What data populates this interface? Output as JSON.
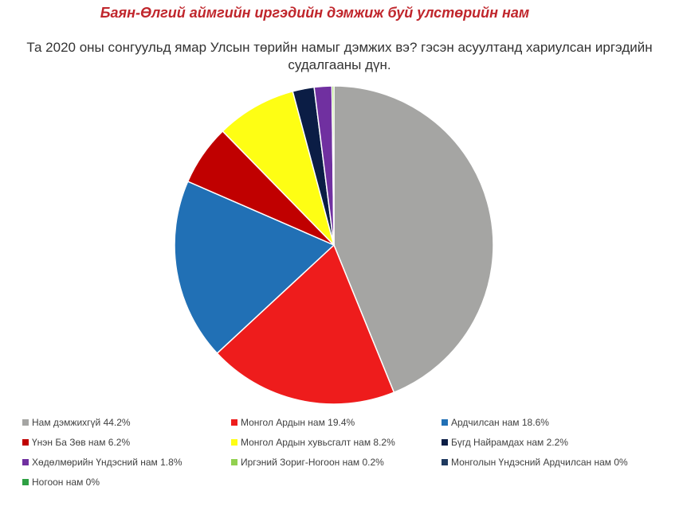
{
  "header": {
    "title": "Баян-Өлгий аймгийн иргэдийн дэмжиж буй улстөрийн нам",
    "subtitle_line1": "Та 2020 оны сонгуульд ямар Улсын төрийн намыг дэмжих вэ? гэсэн асуултанд хариулсан иргэдийн",
    "subtitle_line2": "судалгааны дүн."
  },
  "chart_data": {
    "type": "pie",
    "title": "Та 2020 оны сонгуульд ямар Улсын төрийн намыг дэмжих вэ? гэсэн асуултанд хариулсан иргэдийн судалгааны дүн.",
    "slices": [
      {
        "label": "Нам дэмжихгүй 44.2%",
        "value": 44.2,
        "color": "#a5a5a3"
      },
      {
        "label": "Монгол Ардын нам 19.4%",
        "value": 19.4,
        "color": "#ee1c1c"
      },
      {
        "label": "Ардчилсан нам 18.6%",
        "value": 18.6,
        "color": "#2170b5"
      },
      {
        "label": "Үнэн Ба Зөв нам 6.2%",
        "value": 6.2,
        "color": "#c00000"
      },
      {
        "label": "Монгол Ардын хувьсгалт нам 8.2%",
        "value": 8.2,
        "color": "#fefe14"
      },
      {
        "label": "Бүгд Найрамдах нам 2.2%",
        "value": 2.2,
        "color": "#0b1d45"
      },
      {
        "label": "Хөдөлмөрийн Үндэсний нам 1.8%",
        "value": 1.8,
        "color": "#7030a0"
      },
      {
        "label": "Иргэний Зориг-Ногоон нам 0.2%",
        "value": 0.2,
        "color": "#92d050"
      },
      {
        "label": "Монголын Үндэсний Ардчилсан нам 0%",
        "value": 0,
        "color": "#1f3a5f"
      },
      {
        "label": "Ногоон нам 0%",
        "value": 0,
        "color": "#2ea043"
      }
    ],
    "start_angle_deg": 0,
    "direction": "clockwise",
    "legend_position": "bottom"
  }
}
